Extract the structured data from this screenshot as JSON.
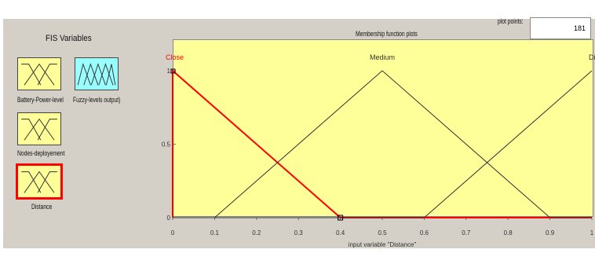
{
  "fis": {
    "title": "FIS Variables",
    "variables": [
      {
        "label": "Battery-Power-level",
        "type": "input"
      },
      {
        "label": "Fuzzy-levels output)",
        "type": "output"
      },
      {
        "label": "Nodes-deployement",
        "type": "input"
      },
      {
        "label": "Distance",
        "type": "input",
        "selected": true
      }
    ]
  },
  "plot": {
    "title": "Membership function plots",
    "plot_points_label": "plot points:",
    "plot_points_value": "181",
    "x_axis_label": "input variable \"Distance\"",
    "mf_labels": [
      "Close",
      "Medium",
      "Dist"
    ],
    "x_ticks": [
      "0",
      "0.1",
      "0.2",
      "0.3",
      "0.4",
      "0.5",
      "0.6",
      "0.7",
      "0.8",
      "0.9",
      "1"
    ],
    "y_ticks": [
      "0",
      "0.5",
      "1"
    ],
    "colors": {
      "selected": "#ff0000",
      "normal": "#333333",
      "input_box": "#ffff99",
      "output_box": "#99ffff"
    }
  },
  "chart_data": {
    "type": "line",
    "xlabel": "input variable \"Distance\"",
    "xlim": [
      0,
      1
    ],
    "ylim": [
      0,
      1
    ],
    "series": [
      {
        "name": "Close",
        "x": [
          0,
          0,
          0.4,
          1
        ],
        "y": [
          0,
          1,
          0,
          0
        ],
        "selected": true
      },
      {
        "name": "Medium",
        "x": [
          0,
          0.1,
          0.5,
          0.9,
          1
        ],
        "y": [
          0,
          0,
          1,
          0,
          0
        ]
      },
      {
        "name": "Dist",
        "x": [
          0,
          0.6,
          1
        ],
        "y": [
          0,
          0,
          1
        ]
      }
    ]
  }
}
